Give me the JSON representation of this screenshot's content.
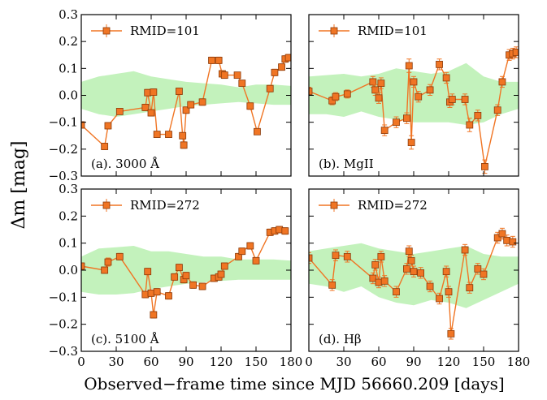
{
  "figure": {
    "ylabel": "Δm [mag]",
    "xlabel": "Observed−frame time since MJD 56660.209 [days]"
  },
  "style": {
    "marker_color": "#f07524",
    "marker_edge": "#8a3a0a",
    "band_color": "#b8f0b0",
    "axis_color": "#000000"
  },
  "chart_data": [
    {
      "type": "line",
      "panel_label": "(a). 3000 Å",
      "legend": "RMID=101",
      "xlim": [
        0,
        180
      ],
      "ylim": [
        -0.3,
        0.3
      ],
      "xticks": [
        "0",
        "30",
        "60",
        "90",
        "120",
        "150",
        "180"
      ],
      "yticks": [
        "−0.3",
        "−0.2",
        "−0.1",
        "0.0",
        "0.1",
        "0.2",
        "0.3"
      ],
      "x": [
        0,
        20,
        23,
        33,
        55,
        57,
        60,
        62,
        65,
        75,
        84,
        87,
        88,
        90,
        94,
        104,
        112,
        118,
        121,
        123,
        134,
        138,
        145,
        151,
        162,
        166,
        172,
        175,
        178
      ],
      "y": [
        -0.11,
        -0.19,
        -0.113,
        -0.06,
        -0.045,
        0.01,
        -0.065,
        0.012,
        -0.145,
        -0.145,
        0.015,
        -0.15,
        -0.185,
        -0.055,
        -0.035,
        -0.025,
        0.13,
        0.13,
        0.08,
        0.075,
        0.075,
        0.045,
        -0.04,
        -0.135,
        0.025,
        0.085,
        0.105,
        0.135,
        0.14
      ],
      "err": [
        0.012,
        0.012,
        0.012,
        0.01,
        0.012,
        0.012,
        0.012,
        0.012,
        0.01,
        0.01,
        0.012,
        0.012,
        0.012,
        0.012,
        0.012,
        0.012,
        0.012,
        0.012,
        0.012,
        0.012,
        0.01,
        0.01,
        0.012,
        0.01,
        0.012,
        0.012,
        0.012,
        0.012,
        0.012
      ],
      "band_x": [
        0,
        15,
        30,
        45,
        60,
        75,
        90,
        105,
        120,
        135,
        150,
        165,
        180
      ],
      "band_upper": [
        0.05,
        0.07,
        0.08,
        0.09,
        0.07,
        0.06,
        0.05,
        0.045,
        0.04,
        0.03,
        0.04,
        0.04,
        0.035
      ],
      "band_lower": [
        -0.05,
        -0.07,
        -0.08,
        -0.07,
        -0.06,
        -0.05,
        -0.04,
        -0.035,
        -0.03,
        -0.025,
        -0.03,
        -0.035,
        -0.035
      ]
    },
    {
      "type": "line",
      "panel_label": "(b). MgII",
      "legend": "RMID=101",
      "xlim": [
        0,
        180
      ],
      "ylim": [
        -0.3,
        0.3
      ],
      "xticks": [
        "0",
        "30",
        "60",
        "90",
        "120",
        "150",
        "180"
      ],
      "yticks": [
        "−0.3",
        "−0.2",
        "−0.1",
        "0.0",
        "0.1",
        "0.2",
        "0.3"
      ],
      "x": [
        0,
        20,
        23,
        33,
        55,
        57,
        60,
        62,
        65,
        75,
        84,
        86,
        88,
        90,
        94,
        104,
        112,
        118,
        121,
        123,
        134,
        138,
        145,
        151,
        162,
        166,
        172,
        175,
        178
      ],
      "y": [
        0.015,
        -0.02,
        -0.005,
        0.005,
        0.05,
        0.02,
        -0.01,
        0.045,
        -0.13,
        -0.1,
        -0.085,
        0.11,
        -0.175,
        0.05,
        -0.005,
        0.02,
        0.115,
        0.065,
        -0.025,
        -0.015,
        -0.015,
        -0.11,
        -0.075,
        -0.265,
        -0.055,
        0.05,
        0.15,
        0.155,
        0.16
      ],
      "err": [
        0.015,
        0.015,
        0.015,
        0.015,
        0.02,
        0.02,
        0.02,
        0.02,
        0.02,
        0.02,
        0.02,
        0.025,
        0.025,
        0.02,
        0.02,
        0.02,
        0.02,
        0.02,
        0.02,
        0.02,
        0.02,
        0.025,
        0.02,
        0.025,
        0.02,
        0.02,
        0.02,
        0.02,
        0.02
      ],
      "band_x": [
        0,
        15,
        30,
        45,
        60,
        75,
        90,
        105,
        120,
        135,
        150,
        165,
        180
      ],
      "band_upper": [
        0.07,
        0.075,
        0.08,
        0.07,
        0.08,
        0.1,
        0.09,
        0.08,
        0.09,
        0.12,
        0.07,
        0.05,
        0.05
      ],
      "band_lower": [
        -0.07,
        -0.07,
        -0.08,
        -0.06,
        -0.08,
        -0.09,
        -0.1,
        -0.1,
        -0.1,
        -0.11,
        -0.1,
        -0.07,
        -0.05
      ]
    },
    {
      "type": "line",
      "panel_label": "(c). 5100 Å",
      "legend": "RMID=272",
      "xlim": [
        0,
        180
      ],
      "ylim": [
        -0.3,
        0.3
      ],
      "xticks": [
        "0",
        "30",
        "60",
        "90",
        "120",
        "150",
        "180"
      ],
      "yticks": [
        "−0.3",
        "−0.2",
        "−0.1",
        "0.0",
        "0.1",
        "0.2",
        "0.3"
      ],
      "x": [
        0,
        20,
        23,
        33,
        55,
        57,
        60,
        62,
        65,
        75,
        80,
        84,
        88,
        90,
        96,
        104,
        114,
        118,
        120,
        123,
        135,
        138,
        145,
        150,
        162,
        166,
        170,
        175
      ],
      "y": [
        0.015,
        0.0,
        0.03,
        0.05,
        -0.09,
        -0.005,
        -0.085,
        -0.165,
        -0.08,
        -0.095,
        -0.025,
        0.01,
        -0.035,
        -0.02,
        -0.055,
        -0.06,
        -0.03,
        -0.025,
        -0.015,
        0.015,
        0.05,
        0.07,
        0.09,
        0.035,
        0.14,
        0.145,
        0.15,
        0.145
      ],
      "err": [
        0.012,
        0.012,
        0.015,
        0.012,
        0.012,
        0.012,
        0.012,
        0.012,
        0.012,
        0.012,
        0.012,
        0.012,
        0.012,
        0.012,
        0.012,
        0.012,
        0.012,
        0.012,
        0.012,
        0.012,
        0.012,
        0.012,
        0.012,
        0.012,
        0.012,
        0.012,
        0.012,
        0.012
      ],
      "band_x": [
        0,
        15,
        30,
        45,
        60,
        75,
        90,
        105,
        120,
        135,
        150,
        165,
        180
      ],
      "band_upper": [
        0.05,
        0.08,
        0.085,
        0.09,
        0.07,
        0.07,
        0.06,
        0.05,
        0.05,
        0.04,
        0.04,
        0.04,
        0.035
      ],
      "band_lower": [
        -0.08,
        -0.09,
        -0.09,
        -0.085,
        -0.07,
        -0.06,
        -0.05,
        -0.045,
        -0.04,
        -0.035,
        -0.035,
        -0.035,
        -0.035
      ]
    },
    {
      "type": "line",
      "panel_label": "(d). Hβ",
      "legend": "RMID=272",
      "xlim": [
        0,
        180
      ],
      "ylim": [
        -0.3,
        0.3
      ],
      "xticks": [
        "0",
        "30",
        "60",
        "90",
        "120",
        "150",
        "180"
      ],
      "yticks": [
        "−0.3",
        "−0.2",
        "−0.1",
        "0.0",
        "0.1",
        "0.2",
        "0.3"
      ],
      "x": [
        0,
        20,
        23,
        33,
        55,
        57,
        60,
        62,
        65,
        75,
        84,
        86,
        88,
        90,
        96,
        104,
        112,
        118,
        120,
        122,
        134,
        138,
        145,
        150,
        162,
        166,
        170,
        175
      ],
      "y": [
        0.045,
        -0.055,
        0.055,
        0.05,
        -0.03,
        0.02,
        -0.045,
        0.05,
        -0.04,
        -0.08,
        0.005,
        0.07,
        0.035,
        -0.005,
        -0.01,
        -0.06,
        -0.105,
        -0.005,
        -0.08,
        -0.235,
        0.075,
        -0.065,
        0.005,
        -0.015,
        0.12,
        0.135,
        0.11,
        0.105
      ],
      "err": [
        0.02,
        0.02,
        0.02,
        0.02,
        0.02,
        0.02,
        0.02,
        0.02,
        0.02,
        0.02,
        0.02,
        0.02,
        0.02,
        0.02,
        0.02,
        0.02,
        0.02,
        0.02,
        0.02,
        0.02,
        0.02,
        0.02,
        0.02,
        0.02,
        0.02,
        0.02,
        0.02,
        0.02
      ],
      "band_x": [
        0,
        15,
        30,
        45,
        60,
        75,
        90,
        105,
        120,
        135,
        150,
        165,
        180
      ],
      "band_upper": [
        0.07,
        0.08,
        0.09,
        0.1,
        0.08,
        0.07,
        0.06,
        0.07,
        0.08,
        0.09,
        0.06,
        0.05,
        0.05
      ],
      "band_lower": [
        -0.05,
        -0.06,
        -0.08,
        -0.06,
        -0.1,
        -0.12,
        -0.13,
        -0.11,
        -0.12,
        -0.14,
        -0.11,
        -0.08,
        -0.05
      ]
    }
  ]
}
